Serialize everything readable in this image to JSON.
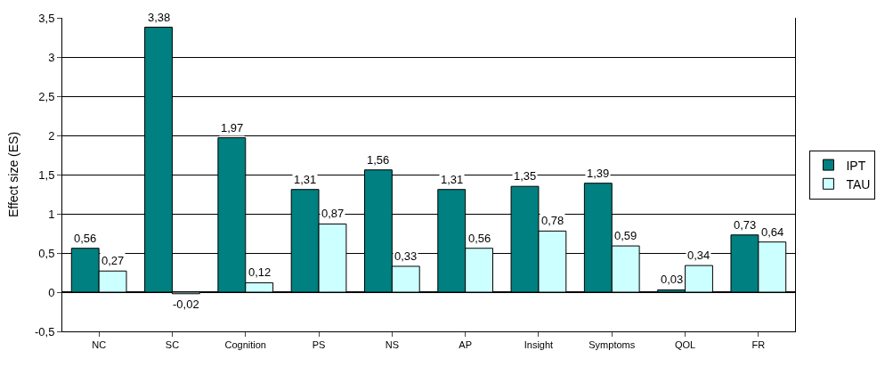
{
  "chart_data": {
    "type": "bar",
    "ylabel": "Effect size (ES)",
    "categories": [
      "NC",
      "SC",
      "Cognition",
      "PS",
      "NS",
      "AP",
      "Insight",
      "Symptoms",
      "QOL",
      "FR"
    ],
    "series": [
      {
        "name": "IPT",
        "color": "#008080",
        "values": [
          0.56,
          3.38,
          1.97,
          1.31,
          1.56,
          1.31,
          1.35,
          1.39,
          0.03,
          0.73
        ],
        "value_labels": [
          "0,56",
          "3,38",
          "1,97",
          "1,31",
          "1,56",
          "1,31",
          "1,35",
          "1,39",
          "0,03",
          "0,73"
        ]
      },
      {
        "name": "TAU",
        "color": "#ccffff",
        "values": [
          0.27,
          -0.02,
          0.12,
          0.87,
          0.33,
          0.56,
          0.78,
          0.59,
          0.34,
          0.64
        ],
        "value_labels": [
          "0,27",
          "-0,02",
          "0,12",
          "0,87",
          "0,33",
          "0,56",
          "0,78",
          "0,59",
          "0,34",
          "0,64"
        ]
      }
    ],
    "ylim": [
      -0.5,
      3.5
    ],
    "yticks": [
      {
        "value": -0.5,
        "label": "-0,5"
      },
      0,
      {
        "value": 0.5,
        "label": "0,5"
      },
      1,
      {
        "value": 1.5,
        "label": "1,5"
      },
      2,
      {
        "value": 2.5,
        "label": "2,5"
      },
      3,
      {
        "value": 3.5,
        "label": "3,5"
      }
    ],
    "grid": "y",
    "legend": "right"
  }
}
